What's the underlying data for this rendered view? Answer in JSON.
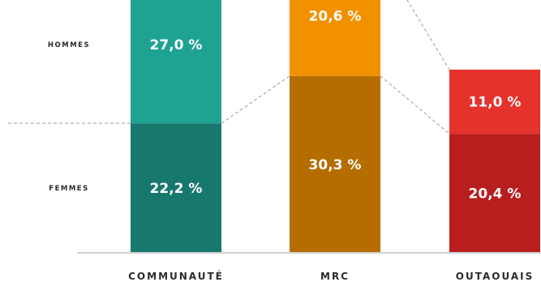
{
  "chart_data": {
    "type": "bar",
    "stacked": true,
    "categories": [
      "COMMUNAUTÉ",
      "MRC",
      "OUTAOUAIS"
    ],
    "series": [
      {
        "name": "FEMMES",
        "values": [
          22.2,
          30.3,
          20.4
        ],
        "labels": [
          "22,2 %",
          "30,3 %",
          "20,4 %"
        ],
        "colors": [
          "#17786d",
          "#b56d00",
          "#b81e1e"
        ]
      },
      {
        "name": "HOMMES",
        "values": [
          27.0,
          20.6,
          11.0
        ],
        "labels": [
          "27,0 %",
          "20,6 %",
          "11,0 %"
        ],
        "colors": [
          "#1ea393",
          "#f29100",
          "#e5322c"
        ]
      }
    ],
    "ylim": [
      0,
      55
    ],
    "grid": false,
    "connector_lines": true
  }
}
